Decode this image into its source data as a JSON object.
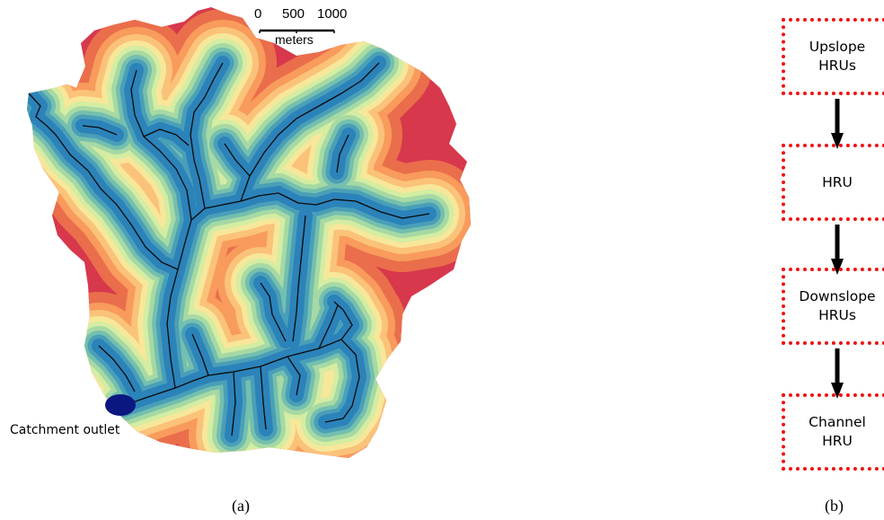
{
  "map": {
    "scale_ticks": [
      "0",
      "500",
      "1000"
    ],
    "scale_unit": "meters",
    "outlet_label": "Catchment outlet",
    "caption": "(a)",
    "palette": [
      "#2b83ba",
      "#4a9fb8",
      "#74bfae",
      "#a6d9a4",
      "#d4eda2",
      "#f7e79a",
      "#fbc27a",
      "#f89b5c",
      "#ea6e4b",
      "#d7384c"
    ],
    "stream_color": "#0a0a0a",
    "outlet_color": "#0b1780"
  },
  "flow": {
    "caption": "(b)",
    "box_border_color": "#ee1111",
    "arrow_color": "#000000",
    "boxes": [
      {
        "lines": [
          "Upslope",
          "HRUs"
        ]
      },
      {
        "lines": [
          "HRU"
        ]
      },
      {
        "lines": [
          "Downslope",
          "HRUs"
        ]
      },
      {
        "lines": [
          "Channel",
          "HRU"
        ]
      }
    ]
  }
}
